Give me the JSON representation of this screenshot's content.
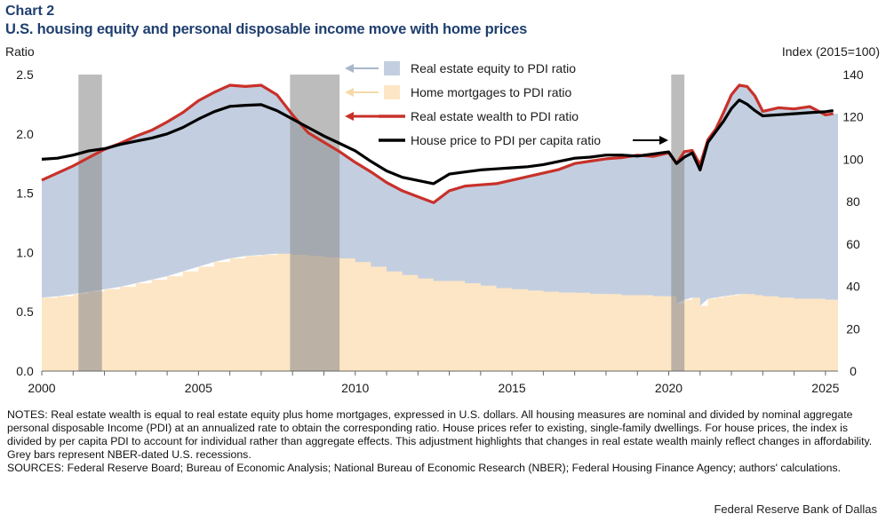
{
  "header": {
    "chart_label": "Chart 2",
    "title": "U.S. housing equity and personal disposable income move with home prices"
  },
  "chart_data": {
    "type": "area",
    "title": "U.S. housing equity and personal disposable income move with home prices",
    "left_axis": {
      "label": "Ratio",
      "range": [
        0,
        2.5
      ],
      "ticks": [
        "0.0",
        "0.5",
        "1.0",
        "1.5",
        "2.0",
        "2.5"
      ]
    },
    "right_axis": {
      "label": "Index  (2015=100)",
      "range": [
        0,
        140
      ],
      "ticks": [
        "0",
        "20",
        "40",
        "60",
        "80",
        "100",
        "120",
        "140"
      ]
    },
    "x_axis": {
      "range": [
        2000,
        2025.4
      ],
      "ticks": [
        "2000",
        "2005",
        "2010",
        "2015",
        "2020",
        "2025"
      ]
    },
    "x": [
      2000.0,
      2000.5,
      2001.0,
      2001.5,
      2002.0,
      2002.5,
      2003.0,
      2003.5,
      2004.0,
      2004.5,
      2005.0,
      2005.5,
      2006.0,
      2006.5,
      2007.0,
      2007.5,
      2008.0,
      2008.5,
      2009.0,
      2009.5,
      2010.0,
      2010.5,
      2011.0,
      2011.5,
      2012.0,
      2012.5,
      2013.0,
      2013.5,
      2014.0,
      2014.5,
      2015.0,
      2015.5,
      2016.0,
      2016.5,
      2017.0,
      2017.5,
      2018.0,
      2018.5,
      2019.0,
      2019.5,
      2020.0,
      2020.25,
      2020.5,
      2020.75,
      2021.0,
      2021.25,
      2021.5,
      2021.75,
      2022.0,
      2022.25,
      2022.5,
      2022.75,
      2023.0,
      2023.5,
      2024.0,
      2024.5,
      2025.0,
      2025.25
    ],
    "series": [
      {
        "name": "Real estate equity to PDI ratio",
        "axis": "left",
        "style": "area",
        "color": "#c3cfe0",
        "values": [
          0.99,
          1.04,
          1.08,
          1.13,
          1.18,
          1.21,
          1.24,
          1.26,
          1.3,
          1.34,
          1.4,
          1.43,
          1.46,
          1.43,
          1.43,
          1.34,
          1.18,
          1.04,
          0.97,
          0.9,
          0.84,
          0.8,
          0.75,
          0.71,
          0.69,
          0.66,
          0.76,
          0.82,
          0.85,
          0.88,
          0.92,
          0.96,
          1.0,
          1.04,
          1.09,
          1.12,
          1.14,
          1.16,
          1.18,
          1.18,
          1.21,
          1.18,
          1.25,
          1.24,
          1.19,
          1.34,
          1.42,
          1.55,
          1.69,
          1.76,
          1.75,
          1.68,
          1.56,
          1.6,
          1.6,
          1.62,
          1.56,
          1.57
        ]
      },
      {
        "name": "Home mortgages to PDI ratio",
        "axis": "left",
        "style": "area",
        "color": "#fde6c5",
        "values": [
          0.62,
          0.63,
          0.65,
          0.67,
          0.69,
          0.71,
          0.74,
          0.77,
          0.8,
          0.84,
          0.88,
          0.92,
          0.95,
          0.97,
          0.98,
          0.99,
          0.98,
          0.97,
          0.96,
          0.95,
          0.92,
          0.88,
          0.84,
          0.81,
          0.78,
          0.76,
          0.76,
          0.74,
          0.72,
          0.7,
          0.69,
          0.68,
          0.67,
          0.66,
          0.66,
          0.65,
          0.65,
          0.64,
          0.64,
          0.63,
          0.63,
          0.57,
          0.6,
          0.62,
          0.55,
          0.61,
          0.62,
          0.63,
          0.64,
          0.65,
          0.65,
          0.64,
          0.63,
          0.62,
          0.61,
          0.61,
          0.6,
          0.6
        ]
      },
      {
        "name": "Real estate wealth to PDI ratio",
        "axis": "left",
        "style": "line",
        "color": "#c8312a",
        "values": [
          1.61,
          1.67,
          1.73,
          1.8,
          1.87,
          1.92,
          1.98,
          2.03,
          2.1,
          2.18,
          2.28,
          2.35,
          2.41,
          2.4,
          2.41,
          2.33,
          2.16,
          2.01,
          1.93,
          1.85,
          1.76,
          1.68,
          1.59,
          1.52,
          1.47,
          1.42,
          1.52,
          1.56,
          1.57,
          1.58,
          1.61,
          1.64,
          1.67,
          1.7,
          1.75,
          1.77,
          1.79,
          1.8,
          1.82,
          1.81,
          1.84,
          1.75,
          1.85,
          1.86,
          1.74,
          1.95,
          2.04,
          2.18,
          2.33,
          2.41,
          2.4,
          2.32,
          2.19,
          2.22,
          2.21,
          2.23,
          2.16,
          2.17
        ]
      },
      {
        "name": "House price to PDI per capita ratio",
        "axis": "right",
        "style": "line",
        "color": "#000000",
        "values": [
          100,
          100.5,
          102,
          104,
          105,
          107,
          108.5,
          110,
          112,
          115,
          119,
          122.5,
          125,
          125.5,
          125.8,
          123,
          119,
          115,
          111,
          107.5,
          104,
          99,
          94.5,
          91.5,
          90,
          88.5,
          93,
          94,
          95,
          95.5,
          96,
          96.5,
          97.5,
          99,
          100.5,
          101,
          102,
          102,
          101.5,
          102.5,
          103.5,
          98,
          101,
          103,
          95,
          108,
          113,
          118,
          124,
          128,
          126,
          123,
          120.5,
          121,
          121.5,
          122,
          122.5,
          123
        ]
      }
    ],
    "recessions": [
      [
        2001.17,
        2001.92
      ],
      [
        2007.92,
        2009.5
      ],
      [
        2020.08,
        2020.5
      ]
    ],
    "recession_color": "#8f8f8f",
    "legend": {
      "placement": "top-center",
      "items": [
        "Real estate equity to PDI ratio",
        "Home mortgages to PDI ratio",
        "Real estate wealth to PDI ratio",
        "House price to PDI per capita ratio"
      ]
    }
  },
  "notes": {
    "text": "NOTES: Real estate wealth is equal to real estate equity plus home mortgages, expressed in U.S. dollars. All housing measures are nominal and divided by nominal aggregate personal disposable Income (PDI) at an annualized rate to obtain the corresponding ratio. House prices refer to existing, single-family dwellings. For house prices, the index is divided by per capita PDI to account for individual rather than aggregate effects. This adjustment highlights that changes in real estate wealth mainly reflect changes in affordability.  Grey bars represent NBER-dated U.S. recessions.",
    "sources": "SOURCES: Federal Reserve Board; Bureau of Economic Analysis; National Bureau of Economic Research (NBER); Federal Housing Finance Agency; authors' calculations."
  },
  "footer": {
    "credit": "Federal Reserve Bank of Dallas"
  }
}
